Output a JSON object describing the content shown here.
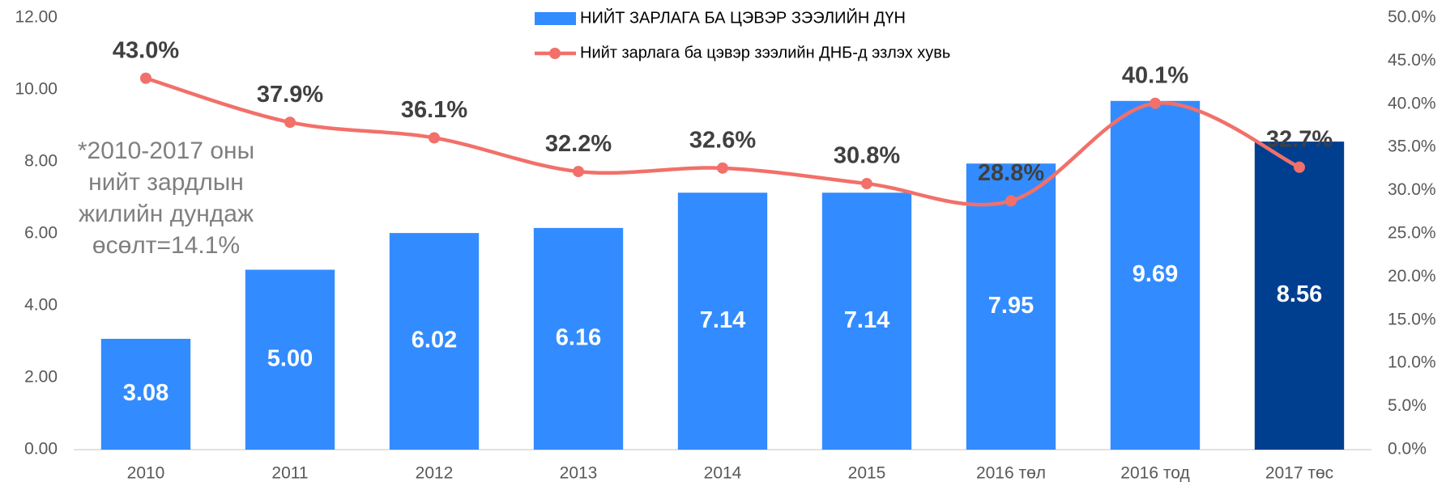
{
  "chart_data": {
    "type": "bar",
    "categories": [
      "2010",
      "2011",
      "2012",
      "2013",
      "2014",
      "2015",
      "2016 төл",
      "2016 тод",
      "2017 төс"
    ],
    "series": [
      {
        "name": "НИЙТ ЗАРЛАГА БА ЦЭВЭР ЗЭЭЛИЙН ДҮН",
        "type": "bar",
        "color": "#338cff",
        "colors": [
          "#338cff",
          "#338cff",
          "#338cff",
          "#338cff",
          "#338cff",
          "#338cff",
          "#338cff",
          "#338cff",
          "#003f8f"
        ],
        "values": [
          3.08,
          5.0,
          6.02,
          6.16,
          7.14,
          7.14,
          7.95,
          9.69,
          8.56
        ],
        "value_labels": [
          "3.08",
          "5.00",
          "6.02",
          "6.16",
          "7.14",
          "7.14",
          "7.95",
          "9.69",
          "8.56"
        ]
      },
      {
        "name": "Нийт зарлага ба цэвэр зээлийн ДНБ-д эзлэх хувь",
        "type": "line",
        "axis": "y2",
        "color": "#f2706a",
        "values": [
          43.0,
          37.9,
          36.1,
          32.2,
          32.6,
          30.8,
          28.8,
          40.1,
          32.7
        ],
        "value_labels": [
          "43.0%",
          "37.9%",
          "36.1%",
          "32.2%",
          "32.6%",
          "30.8%",
          "28.8%",
          "40.1%",
          "32.7%"
        ]
      }
    ],
    "ylim": [
      0,
      12
    ],
    "yticks": [
      {
        "value": 0,
        "label": "0.00"
      },
      {
        "value": 2,
        "label": "2.00"
      },
      {
        "value": 4,
        "label": "4.00"
      },
      {
        "value": 6,
        "label": "6.00"
      },
      {
        "value": 8,
        "label": "8.00"
      },
      {
        "value": 10,
        "label": "10.00"
      },
      {
        "value": 12,
        "label": "12.00"
      }
    ],
    "y2lim": [
      0,
      50
    ],
    "y2ticks": [
      {
        "value": 0,
        "label": "0.0%"
      },
      {
        "value": 5,
        "label": "5.0%"
      },
      {
        "value": 10,
        "label": "10.0%"
      },
      {
        "value": 15,
        "label": "15.0%"
      },
      {
        "value": 20,
        "label": "20.0%"
      },
      {
        "value": 25,
        "label": "25.0%"
      },
      {
        "value": 30,
        "label": "30.0%"
      },
      {
        "value": 35,
        "label": "35.0%"
      },
      {
        "value": 40,
        "label": "40.0%"
      },
      {
        "value": 45,
        "label": "45.0%"
      },
      {
        "value": 50,
        "label": "50.0%"
      }
    ],
    "annotation": [
      "*2010-2017 оны",
      "нийт зардлын",
      "жилийн дундаж",
      "өсөлт=14.1%"
    ],
    "grid": false,
    "legend": "top"
  }
}
